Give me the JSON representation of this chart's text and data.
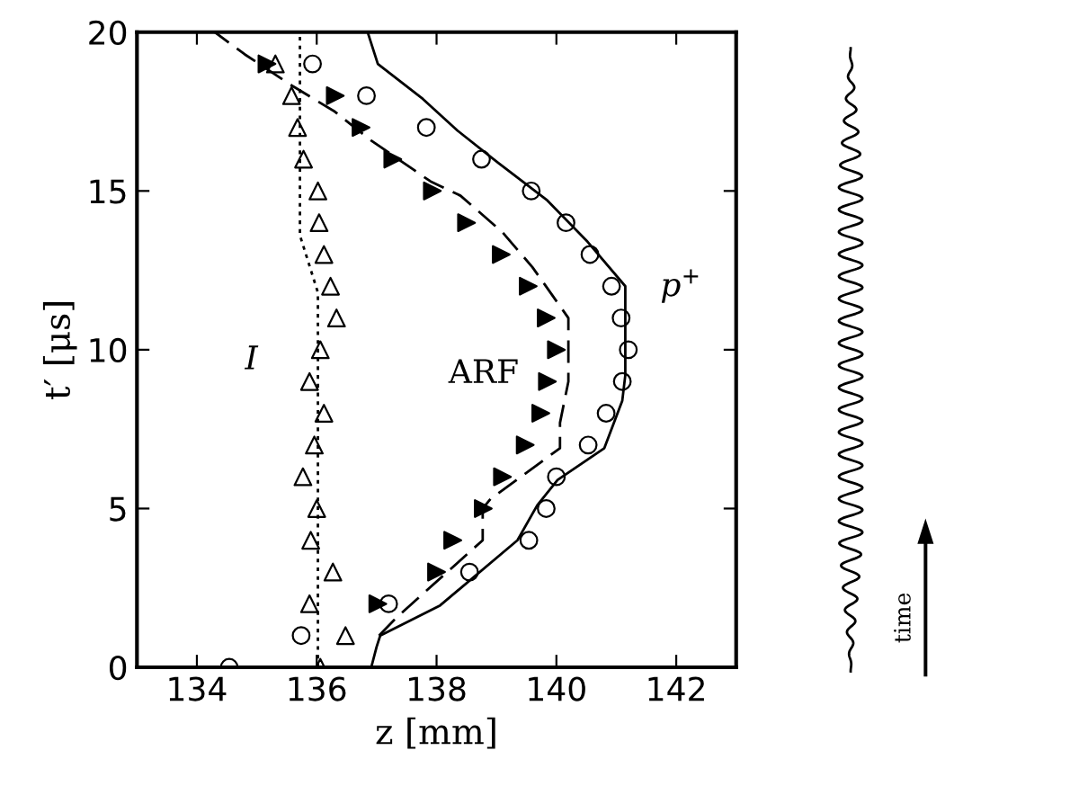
{
  "chart_data": {
    "type": "line",
    "xlabel": "z [mm]",
    "ylabel": "t′ [μs]",
    "xlim": [
      133,
      143
    ],
    "xticks": [
      134,
      136,
      138,
      140,
      142
    ],
    "ylim": [
      0,
      20
    ],
    "yticks": [
      0,
      5,
      10,
      15,
      20
    ],
    "grid": false,
    "legend": false,
    "annotations": [
      "time"
    ],
    "series": [
      {
        "name": "p$^{+}$",
        "line_style": "solid",
        "marker": "none",
        "color": "#000000",
        "x": [
          136.91,
          137.0,
          137.06,
          138.06,
          139.35,
          139.68,
          140.02,
          140.8,
          141.1,
          141.15,
          141.15,
          140.52,
          139.85,
          139.02,
          138.35,
          137.77,
          137.02,
          136.85
        ],
        "values": [
          0,
          0.65,
          1,
          1.95,
          4,
          5.1,
          5.9,
          6.9,
          8.4,
          9.2,
          12,
          13.4,
          14.7,
          15.9,
          16.9,
          17.9,
          19,
          20
        ]
      },
      {
        "name": "ARF",
        "line_style": "dashed",
        "marker": "none",
        "color": "#000000",
        "x": [
          137.04,
          137.35,
          138.77,
          138.77,
          138.9,
          140.06,
          140.06,
          140.2,
          140.2,
          139.6,
          139.1,
          138.4,
          137.9,
          136.9,
          136.3,
          135.6,
          134.8,
          134.3
        ],
        "values": [
          1,
          1.6,
          4,
          5,
          5.3,
          6.9,
          7.7,
          9,
          11,
          12.6,
          13.7,
          14.85,
          15.3,
          16.6,
          17.5,
          18.3,
          19.3,
          20
        ]
      },
      {
        "name": "I",
        "line_style": "dotted",
        "marker": "none",
        "color": "#000000",
        "x": [
          136.02,
          136.02,
          135.72,
          135.72
        ],
        "values": [
          0,
          11.8,
          13.6,
          20
        ]
      },
      {
        "type": "scatter",
        "marker": "circle",
        "color": "#000000",
        "x": [
          134.54,
          135.74,
          137.2,
          138.55,
          139.54,
          139.83,
          140.0,
          140.53,
          140.83,
          141.1,
          141.2,
          141.08,
          140.92,
          140.56,
          140.16,
          139.58,
          138.75,
          137.83,
          136.83,
          135.93
        ],
        "values": [
          0,
          1,
          2,
          3,
          4,
          5,
          6,
          7,
          8,
          9,
          10,
          11,
          12,
          13,
          14,
          15,
          16,
          17,
          18,
          19
        ]
      },
      {
        "type": "scatter",
        "marker": "triangle-right",
        "color": "#000000",
        "x": [
          137.02,
          138.0,
          138.27,
          138.78,
          139.1,
          139.48,
          139.74,
          139.85,
          140.0,
          139.83,
          139.53,
          139.08,
          138.5,
          137.93,
          137.27,
          136.74,
          136.31,
          135.17
        ],
        "values": [
          2,
          3,
          4,
          5,
          6,
          7,
          8,
          9,
          10,
          11,
          12,
          13,
          14,
          15,
          16,
          17,
          18,
          19
        ]
      },
      {
        "type": "scatter",
        "marker": "triangle",
        "color": "#000000",
        "x": [
          136.06,
          136.48,
          135.88,
          136.27,
          135.9,
          136.0,
          135.77,
          135.96,
          136.12,
          135.88,
          136.06,
          136.33,
          136.23,
          136.12,
          136.04,
          136.02,
          135.78,
          135.68,
          135.58,
          135.31
        ],
        "values": [
          0,
          1,
          2,
          3,
          4,
          5,
          6,
          7,
          8,
          9,
          10,
          11,
          12,
          13,
          14,
          15,
          16,
          17,
          18,
          19
        ]
      }
    ]
  }
}
